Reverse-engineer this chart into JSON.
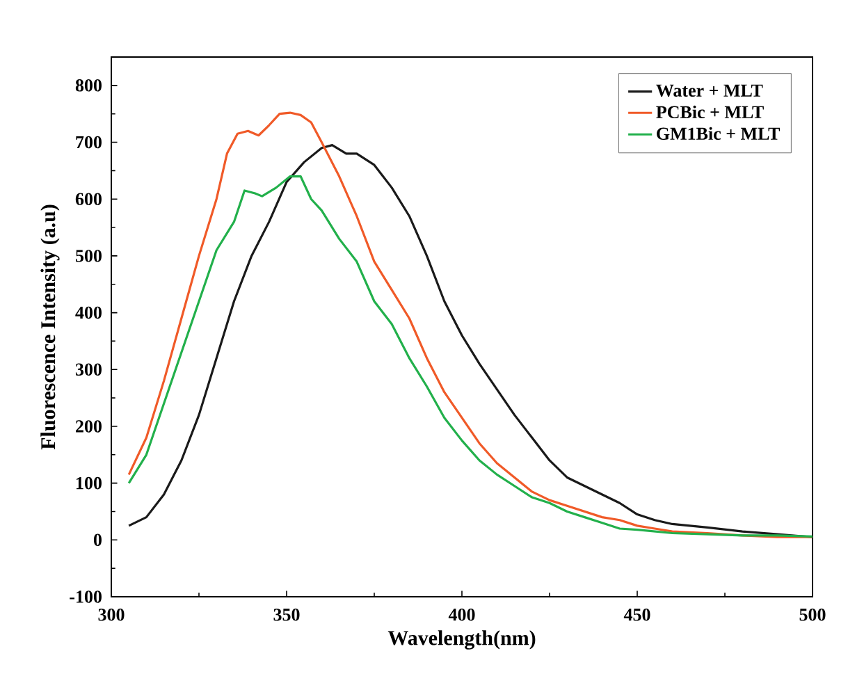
{
  "chart_data": {
    "type": "line",
    "xlabel": "Wavelength(nm)",
    "ylabel": "Fluorescence Intensity (a.u)",
    "xlim": [
      300,
      500
    ],
    "ylim": [
      -100,
      850
    ],
    "xticks": [
      300,
      350,
      400,
      450,
      500
    ],
    "yticks": [
      -100,
      0,
      100,
      200,
      300,
      400,
      500,
      600,
      700,
      800
    ],
    "legend": "top right",
    "grid": false,
    "marker": "none",
    "line_style": "solid",
    "series": [
      {
        "name": "Water + MLT",
        "color": "#1a1a1a",
        "x": [
          305,
          310,
          315,
          320,
          325,
          330,
          335,
          340,
          345,
          350,
          355,
          360,
          363,
          367,
          370,
          375,
          380,
          385,
          390,
          395,
          400,
          405,
          410,
          415,
          420,
          425,
          430,
          435,
          440,
          445,
          450,
          455,
          460,
          470,
          480,
          490,
          500
        ],
        "values": [
          25,
          40,
          80,
          140,
          220,
          320,
          420,
          500,
          560,
          630,
          665,
          690,
          695,
          680,
          680,
          660,
          620,
          570,
          500,
          420,
          360,
          310,
          265,
          220,
          180,
          140,
          110,
          95,
          80,
          65,
          45,
          35,
          28,
          22,
          15,
          10,
          5
        ]
      },
      {
        "name": "PCBic + MLT",
        "color": "#f05a28",
        "x": [
          305,
          310,
          315,
          320,
          325,
          330,
          333,
          336,
          339,
          342,
          345,
          348,
          351,
          354,
          357,
          360,
          365,
          370,
          375,
          380,
          385,
          390,
          395,
          400,
          405,
          410,
          415,
          420,
          425,
          430,
          435,
          440,
          445,
          450,
          455,
          460,
          470,
          480,
          490,
          500
        ],
        "values": [
          115,
          180,
          280,
          390,
          500,
          600,
          680,
          715,
          720,
          712,
          730,
          750,
          752,
          748,
          735,
          700,
          640,
          570,
          490,
          440,
          390,
          320,
          260,
          215,
          170,
          135,
          110,
          85,
          70,
          60,
          50,
          40,
          35,
          25,
          20,
          15,
          12,
          8,
          5,
          5
        ]
      },
      {
        "name": "GM1Bic + MLT",
        "color": "#22b04b",
        "x": [
          305,
          310,
          315,
          320,
          325,
          330,
          335,
          338,
          341,
          343,
          347,
          351,
          354,
          357,
          360,
          365,
          370,
          375,
          380,
          385,
          390,
          395,
          400,
          405,
          410,
          415,
          420,
          425,
          430,
          435,
          440,
          445,
          450,
          460,
          470,
          480,
          490,
          500
        ],
        "values": [
          100,
          150,
          240,
          330,
          420,
          510,
          560,
          615,
          610,
          605,
          620,
          640,
          640,
          600,
          580,
          530,
          490,
          420,
          380,
          320,
          270,
          215,
          175,
          140,
          115,
          95,
          75,
          65,
          50,
          40,
          30,
          20,
          18,
          12,
          10,
          8,
          8,
          6
        ]
      }
    ]
  }
}
